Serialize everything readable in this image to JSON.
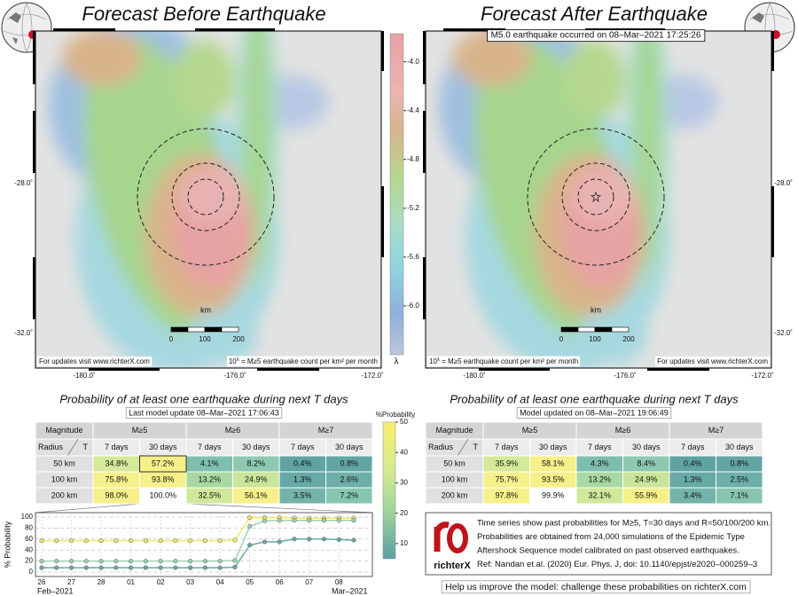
{
  "left_panel": {
    "title": "Forecast Before Earthquake",
    "lat_labels": [
      "-28.0˚",
      "-32.0˚"
    ],
    "lon_labels": [
      "-180.0˚",
      "-176.0˚",
      "-172.0˚"
    ],
    "scale_bar": {
      "unit": "km",
      "labels": [
        "0",
        "100",
        "200"
      ]
    },
    "footer_link": "For updates visit www.richterX.com",
    "footer_units": {
      "base": "10",
      "exp": "λ",
      "text": " = M≥5 earthquake count per km² per month"
    }
  },
  "right_panel": {
    "title": "Forecast After Earthquake",
    "annotation": "M5.0 earthquake occurred on 08–Mar–2021 17:25:26",
    "lat_labels": [
      "-28.0˚",
      "-32.0˚"
    ],
    "lon_labels": [
      "-180.0˚",
      "-176.0˚",
      "-172.0˚"
    ],
    "scale_bar": {
      "unit": "km",
      "labels": [
        "0",
        "100",
        "200"
      ]
    },
    "footer_link": "For updates visit www.richterX.com",
    "footer_units": {
      "base": "10",
      "exp": "λ",
      "text": " = M≥5 earthquake count per km² per month"
    }
  },
  "colorbar": {
    "label": "λ",
    "lim": [
      -6.4,
      -3.77
    ],
    "ticks": [
      {
        "value": -4.0,
        "label": "-4.0"
      },
      {
        "value": -4.4,
        "label": "-4.4"
      },
      {
        "value": -4.8,
        "label": "-4.8"
      },
      {
        "value": -5.2,
        "label": "-5.2"
      },
      {
        "value": -5.6,
        "label": "-5.6"
      },
      {
        "value": -6.0,
        "label": "-6.0"
      }
    ]
  },
  "left_table": {
    "title": "Probability of at least one earthquake during next T days",
    "update": "Last model update 08–Mar–2021 17:06:43",
    "header": [
      "Magnitude",
      "M≥5",
      "M≥6",
      "M≥7"
    ],
    "radius_label": "Radius",
    "t_label": "T",
    "periods": [
      "7 days",
      "30 days",
      "7 days",
      "30 days",
      "7 days",
      "30 days"
    ],
    "rows": [
      [
        "50 km",
        "34.8%",
        "57.2%",
        "4.1%",
        "8.2%",
        "0.4%",
        "0.8%"
      ],
      [
        "100 km",
        "75.8%",
        "93.8%",
        "13.2%",
        "24.9%",
        "1.3%",
        "2.6%"
      ],
      [
        "200 km",
        "98.0%",
        "100.0%",
        "32.5%",
        "56.1%",
        "3.5%",
        "7.2%"
      ]
    ],
    "cell_colors": [
      [
        "#d4ea9a",
        "#f7f08a",
        "#7fbfb0",
        "#8cc9b0",
        "#5fa3a3",
        "#62a6a4"
      ],
      [
        "#f7f08a",
        "#f7f08a",
        "#a8d9a0",
        "#c8e69a",
        "#66a9a6",
        "#6eafa8"
      ],
      [
        "#f7f08a",
        "#ffffff",
        "#d0e89a",
        "#f7f08a",
        "#73b3aa",
        "#86c5ae"
      ]
    ]
  },
  "right_table": {
    "title": "Probability of at least one earthquake during next T days",
    "update": "Model updated on 08–Mar–2021 19:06:49",
    "header": [
      "Magnitude",
      "M≥5",
      "M≥6",
      "M≥7"
    ],
    "radius_label": "Radius",
    "t_label": "T",
    "periods": [
      "7 days",
      "30 days",
      "7 days",
      "30 days",
      "7 days",
      "30 days"
    ],
    "rows": [
      [
        "50 km",
        "35.9%",
        "58.1%",
        "4.3%",
        "8.4%",
        "0.4%",
        "0.8%"
      ],
      [
        "100 km",
        "75.7%",
        "93.5%",
        "13.2%",
        "24.9%",
        "1.3%",
        "2.5%"
      ],
      [
        "200 km",
        "97.8%",
        "99.9%",
        "32.1%",
        "55.9%",
        "3.4%",
        "7.1%"
      ]
    ],
    "cell_colors": [
      [
        "#d4ea9a",
        "#f7f08a",
        "#7cbdaf",
        "#8cc9b0",
        "#5fa3a3",
        "#62a6a4"
      ],
      [
        "#f7f08a",
        "#f7f08a",
        "#a8d9a0",
        "#c8e69a",
        "#66a9a6",
        "#6eafa8"
      ],
      [
        "#f7f08a",
        "#ffffff",
        "#d0e89a",
        "#f7f08a",
        "#73b3aa",
        "#86c5ae"
      ]
    ]
  },
  "probability_colorbar": {
    "label": "%Probability",
    "lim": [
      5,
      50
    ],
    "ticks": [
      10,
      20,
      30,
      40,
      50
    ]
  },
  "chart_data": {
    "type": "line",
    "ylabel": "% Probability",
    "x": [
      "2021-02-26T00:00",
      "2021-02-26T12:00",
      "2021-02-27T00:00",
      "2021-02-27T12:00",
      "2021-02-28T00:00",
      "2021-02-28T12:00",
      "2021-03-01T00:00",
      "2021-03-01T12:00",
      "2021-03-02T00:00",
      "2021-03-02T12:00",
      "2021-03-03T00:00",
      "2021-03-03T12:00",
      "2021-03-04T00:00",
      "2021-03-04T12:00",
      "2021-03-05T00:00",
      "2021-03-05T12:00",
      "2021-03-06T00:00",
      "2021-03-06T12:00",
      "2021-03-07T00:00",
      "2021-03-07T12:00",
      "2021-03-08T00:00",
      "2021-03-08T12:00"
    ],
    "series": [
      {
        "color": "#f2e66a",
        "values": [
          57,
          57,
          57,
          57,
          57,
          57,
          57,
          57,
          57,
          57,
          57,
          57,
          57,
          58,
          99,
          99,
          99,
          98,
          98,
          98,
          98,
          98
        ]
      },
      {
        "color": "#9fd0b0",
        "values": [
          20,
          20,
          20,
          20,
          20,
          20,
          20,
          20,
          20,
          20,
          20,
          20,
          20,
          21,
          83,
          93,
          94,
          94,
          94,
          94,
          94,
          94
        ]
      },
      {
        "color": "#6aa7a5",
        "values": [
          8,
          8,
          8,
          8,
          8,
          8,
          8,
          8,
          8,
          8,
          8,
          8,
          8,
          9,
          49,
          55,
          55,
          60,
          60,
          60,
          59,
          58
        ]
      }
    ],
    "xlim": [
      "2021-02-25T19:00",
      "2021-03-09T03:00"
    ],
    "xticks": [
      {
        "value": "2021-02-26T00:00",
        "label": "26"
      },
      {
        "value": "2021-02-27T00:00",
        "label": "27"
      },
      {
        "value": "2021-02-28T00:00",
        "label": "28"
      },
      {
        "value": "2021-03-01T00:00",
        "label": "01"
      },
      {
        "value": "2021-03-02T00:00",
        "label": "02"
      },
      {
        "value": "2021-03-03T00:00",
        "label": "03"
      },
      {
        "value": "2021-03-04T00:00",
        "label": "04"
      },
      {
        "value": "2021-03-05T00:00",
        "label": "05"
      },
      {
        "value": "2021-03-06T00:00",
        "label": "06"
      },
      {
        "value": "2021-03-07T00:00",
        "label": "07"
      },
      {
        "value": "2021-03-08T00:00",
        "label": "08"
      }
    ],
    "period_labels": [
      {
        "value": "2021-02-26T00:00",
        "label": "Feb–2021"
      },
      {
        "value": "2021-03-08T00:00",
        "label": "Mar–2021"
      }
    ],
    "ylim": [
      -8,
      108
    ],
    "yticks": [
      0,
      20,
      40,
      60,
      80,
      100
    ],
    "grid": true
  },
  "info_box": {
    "logo_text": "richterX",
    "lines": [
      "Time series show past probabilities for M≥5, T=30 days and R=50/100/200 km.",
      "Probabilities are obtained from 24,000 simulations of the Epidemic Type",
      "Aftershock Sequence model calibrated on past observed earthquakes.",
      "Ref: Nandan et.al. (2020) Eur. Phys. J, doi: 10.1140/epjst/e2020–000259–3"
    ]
  },
  "footer": "Help us improve the model: challenge these probabilities on richterX.com"
}
